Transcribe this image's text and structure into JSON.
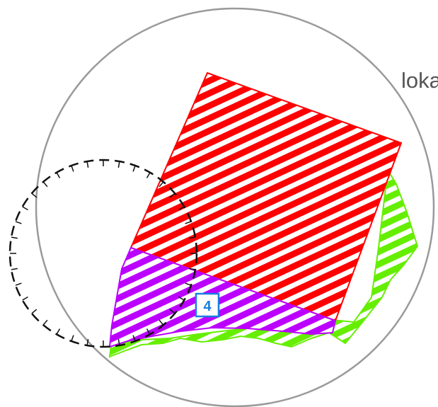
{
  "map": {
    "place_label": "loka",
    "marker_number": "4",
    "colors": {
      "boundary_circle": "#9a9a9a",
      "red_zone": "#ff0000",
      "green_zone": "#66ee00",
      "purple_zone": "#bb00ff",
      "marker_border": "#1a7fe0",
      "marker_text": "#1a7fe0",
      "dashed_ring": "#111111"
    },
    "layers": [
      {
        "name": "red-zone",
        "pattern": "diagonal-stripes"
      },
      {
        "name": "green-zone",
        "pattern": "diagonal-stripes"
      },
      {
        "name": "purple-zone",
        "pattern": "diagonal-stripes"
      },
      {
        "name": "dashed-ring",
        "style": "dashed-with-inner-ticks"
      }
    ]
  }
}
